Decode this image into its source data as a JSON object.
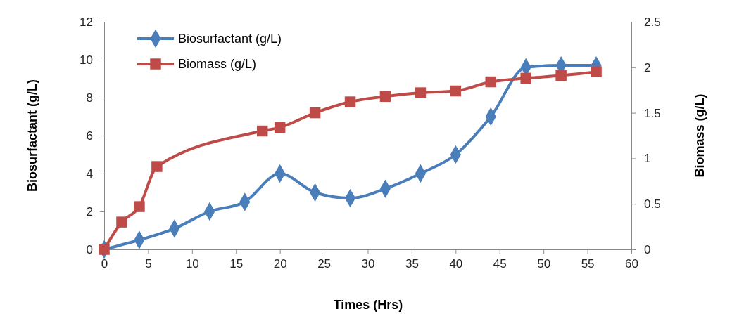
{
  "chart_data": {
    "type": "line",
    "xlabel": "Times (Hrs)",
    "ylabel": "Biosurfactant (g/L)",
    "y2label": "Biomass (g/L)",
    "xlim": [
      0,
      60
    ],
    "xticks": [
      0,
      5,
      10,
      15,
      20,
      25,
      30,
      35,
      40,
      45,
      50,
      55,
      60
    ],
    "ylim": [
      0,
      12
    ],
    "yticks": [
      0,
      2,
      4,
      6,
      8,
      10,
      12
    ],
    "y2lim": [
      0,
      2.5
    ],
    "y2ticks": [
      0,
      0.5,
      1,
      1.5,
      2,
      2.5
    ],
    "legend": "top left",
    "grid": false,
    "series": [
      {
        "name": "Biosurfactant (g/L)",
        "color": "#4a7ebb",
        "marker": "diamond",
        "x": [
          0,
          4,
          8,
          12,
          16,
          20,
          24,
          28,
          32,
          36,
          40,
          44,
          48,
          52,
          56
        ],
        "values": [
          0,
          0.5,
          1.1,
          2,
          2.5,
          4,
          3,
          2.7,
          3.2,
          4,
          5,
          7,
          9.6,
          9.7,
          9.7
        ]
      },
      {
        "name": "Biomass (g/L)",
        "color": "#be4b48",
        "marker": "square",
        "axis": "y2",
        "x": [
          0,
          2,
          4,
          6,
          18,
          20,
          24,
          28,
          32,
          36,
          40,
          44,
          48,
          52,
          56
        ],
        "values": [
          0,
          0.3,
          0.47,
          0.91,
          1.3,
          1.34,
          1.5,
          1.62,
          1.68,
          1.72,
          1.74,
          1.84,
          1.88,
          1.91,
          1.95
        ]
      }
    ]
  }
}
